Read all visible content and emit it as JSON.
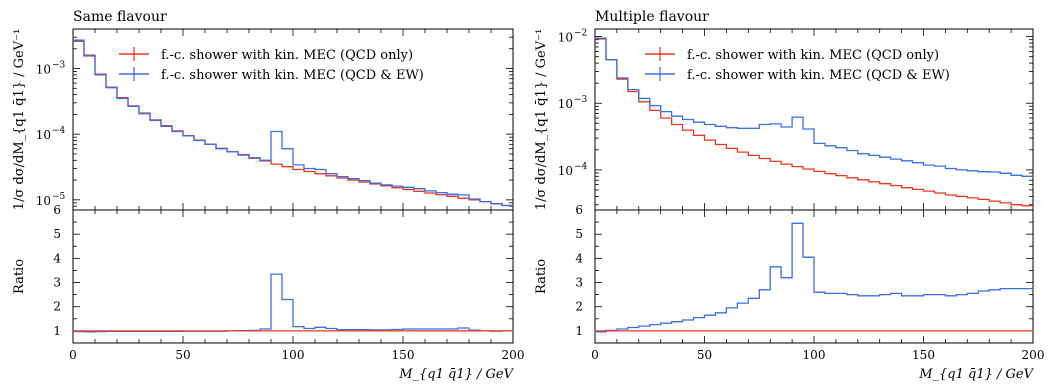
{
  "colors": {
    "qcd_only": "#e8381f",
    "qcd_ew": "#3a6fe8",
    "axis": "#000000"
  },
  "chart_data": [
    {
      "type": "line",
      "step": true,
      "title": "Same flavour",
      "xlabel": "M_{q1 q̄1} / GeV",
      "ylabel": "1/σ dσ/dM_{q1 q̄1} / GeV⁻¹",
      "ratio_ylabel": "Ratio",
      "xlim": [
        0,
        200
      ],
      "ylim": [
        7e-06,
        0.004
      ],
      "yscale": "log",
      "ratio_ylim": [
        0.5,
        6
      ],
      "legend_position": "top-left",
      "xticks": [
        "0",
        "50",
        "100",
        "150",
        "200"
      ],
      "yticks": [
        {
          "v": 1e-05,
          "label": "10"
        },
        {
          "v": 0.0001,
          "label": "10"
        },
        {
          "v": 0.001,
          "label": "10"
        }
      ],
      "ytick_exponents": [
        "−5",
        "−4",
        "−3"
      ],
      "ratio_yticks": [
        "1",
        "2",
        "3",
        "4",
        "5",
        "6"
      ],
      "x_edges": [
        0,
        5,
        10,
        15,
        20,
        25,
        30,
        35,
        40,
        45,
        50,
        55,
        60,
        65,
        70,
        75,
        80,
        85,
        90,
        95,
        100,
        105,
        110,
        115,
        120,
        125,
        130,
        135,
        140,
        145,
        150,
        155,
        160,
        165,
        170,
        175,
        180,
        185,
        190,
        195,
        200
      ],
      "series": [
        {
          "name": "f.-c. shower with kin. MEC (QCD only)",
          "color_key": "qcd_only",
          "values": [
            0.0027,
            0.0016,
            0.00082,
            0.00052,
            0.00036,
            0.00027,
            0.00021,
            0.000165,
            0.000135,
            0.000112,
            9.5e-05,
            8.1e-05,
            7e-05,
            6.1e-05,
            5.4e-05,
            4.8e-05,
            4.3e-05,
            3.9e-05,
            3.5e-05,
            3.2e-05,
            2.9e-05,
            2.7e-05,
            2.5e-05,
            2.32e-05,
            2.15e-05,
            2e-05,
            1.86e-05,
            1.74e-05,
            1.63e-05,
            1.53e-05,
            1.44e-05,
            1.35e-05,
            1.27e-05,
            1.2e-05,
            1.13e-05,
            1.06e-05,
            1e-05,
            9.4e-06,
            8.8e-06,
            8.2e-06
          ],
          "ratio": [
            1,
            1,
            1,
            1,
            1,
            1,
            1,
            1,
            1,
            1,
            1,
            1,
            1,
            1,
            1,
            1,
            1,
            1,
            1,
            1,
            1,
            1,
            1,
            1,
            1,
            1,
            1,
            1,
            1,
            1,
            1,
            1,
            1,
            1,
            1,
            1,
            1,
            1,
            1,
            1
          ]
        },
        {
          "name": "f.-c. shower with kin. MEC (QCD & EW)",
          "color_key": "qcd_ew",
          "values": [
            0.0026,
            0.00155,
            0.0008,
            0.00051,
            0.00035,
            0.000265,
            0.000205,
            0.000162,
            0.000132,
            0.00011,
            9.4e-05,
            8e-05,
            7e-05,
            6e-05,
            5.4e-05,
            4.9e-05,
            4.4e-05,
            4e-05,
            0.00011,
            6e-05,
            3.4e-05,
            3e-05,
            2.9e-05,
            2.5e-05,
            2.26e-05,
            2.1e-05,
            1.96e-05,
            1.8e-05,
            1.69e-05,
            1.62e-05,
            1.55e-05,
            1.48e-05,
            1.37e-05,
            1.29e-05,
            1.22e-05,
            1.19e-05,
            1.03e-05,
            9.4e-06,
            8.7e-06,
            8.2e-06
          ],
          "ratio": [
            0.97,
            0.96,
            0.97,
            0.98,
            0.98,
            0.98,
            0.98,
            0.98,
            0.98,
            0.98,
            0.99,
            0.99,
            0.99,
            0.99,
            1.0,
            1.01,
            1.02,
            1.08,
            3.35,
            2.3,
            1.18,
            1.1,
            1.15,
            1.1,
            1.05,
            1.05,
            1.05,
            1.04,
            1.04,
            1.06,
            1.08,
            1.08,
            1.08,
            1.08,
            1.08,
            1.12,
            1.03,
            1.0,
            0.99,
            1.0
          ]
        }
      ]
    },
    {
      "type": "line",
      "step": true,
      "title": "Multiple flavour",
      "xlabel": "M_{q1 q̄1} / GeV",
      "ylabel": "1/σ dσ/dM_{q1 q̄1} / GeV⁻¹",
      "ratio_ylabel": "Ratio",
      "xlim": [
        0,
        200
      ],
      "ylim": [
        2.5e-05,
        0.013
      ],
      "yscale": "log",
      "ratio_ylim": [
        0.5,
        6
      ],
      "legend_position": "top-left",
      "xticks": [
        "0",
        "50",
        "100",
        "150",
        "200"
      ],
      "yticks": [
        {
          "v": 0.0001,
          "label": "10"
        },
        {
          "v": 0.001,
          "label": "10"
        },
        {
          "v": 0.01,
          "label": "10"
        }
      ],
      "ytick_exponents": [
        "−4",
        "−3",
        "−2"
      ],
      "ratio_yticks": [
        "1",
        "2",
        "3",
        "4",
        "5",
        "6"
      ],
      "x_edges": [
        0,
        5,
        10,
        15,
        20,
        25,
        30,
        35,
        40,
        45,
        50,
        55,
        60,
        65,
        70,
        75,
        80,
        85,
        90,
        95,
        100,
        105,
        110,
        115,
        120,
        125,
        130,
        135,
        140,
        145,
        150,
        155,
        160,
        165,
        170,
        175,
        180,
        185,
        190,
        195,
        200
      ],
      "series": [
        {
          "name": "f.-c. shower with kin. MEC (QCD only)",
          "color_key": "qcd_only",
          "values": [
            0.0095,
            0.0045,
            0.0023,
            0.0015,
            0.00105,
            0.00078,
            0.0006,
            0.00048,
            0.000395,
            0.00033,
            0.00028,
            0.00024,
            0.00021,
            0.000185,
            0.000165,
            0.000148,
            0.000134,
            0.000122,
            0.000112,
            0.000103,
            9.5e-05,
            8.8e-05,
            8.2e-05,
            7.6e-05,
            7.1e-05,
            6.6e-05,
            6.2e-05,
            5.8e-05,
            5.4e-05,
            5.1e-05,
            4.8e-05,
            4.5e-05,
            4.2e-05,
            4e-05,
            3.8e-05,
            3.6e-05,
            3.4e-05,
            3.2e-05,
            3e-05,
            2.9e-05
          ],
          "ratio": [
            1,
            1,
            1,
            1,
            1,
            1,
            1,
            1,
            1,
            1,
            1,
            1,
            1,
            1,
            1,
            1,
            1,
            1,
            1,
            1,
            1,
            1,
            1,
            1,
            1,
            1,
            1,
            1,
            1,
            1,
            1,
            1,
            1,
            1,
            1,
            1,
            1,
            1,
            1,
            1
          ]
        },
        {
          "name": "f.-c. shower with kin. MEC (QCD & EW)",
          "color_key": "qcd_ew",
          "values": [
            0.0092,
            0.0045,
            0.0024,
            0.0016,
            0.00118,
            0.00092,
            0.00075,
            0.00064,
            0.00057,
            0.00052,
            0.00048,
            0.00045,
            0.00043,
            0.00042,
            0.00042,
            0.00048,
            0.00049,
            0.00044,
            0.00062,
            0.00041,
            0.00025,
            0.00023,
            0.000215,
            0.000195,
            0.000175,
            0.000165,
            0.000155,
            0.000145,
            0.000137,
            0.000128,
            0.000118,
            0.000114,
            0.000105,
            0.0001,
            9.7e-05,
            9.4e-05,
            9.3e-05,
            8.9e-05,
            8.3e-05,
            8e-05
          ],
          "ratio": [
            0.96,
            1.02,
            1.08,
            1.14,
            1.2,
            1.26,
            1.32,
            1.38,
            1.45,
            1.55,
            1.65,
            1.75,
            1.95,
            2.15,
            2.35,
            2.7,
            3.65,
            3.2,
            5.45,
            4.05,
            2.6,
            2.55,
            2.55,
            2.5,
            2.45,
            2.45,
            2.5,
            2.55,
            2.45,
            2.45,
            2.5,
            2.5,
            2.45,
            2.5,
            2.55,
            2.65,
            2.7,
            2.75,
            2.75,
            2.75
          ]
        }
      ]
    }
  ]
}
